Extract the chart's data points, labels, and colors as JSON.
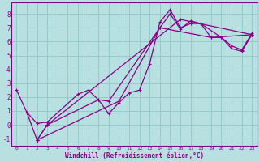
{
  "xlabel": "Windchill (Refroidissement éolien,°C)",
  "xlim": [
    -0.5,
    23.5
  ],
  "ylim": [
    -1.5,
    8.8
  ],
  "yticks": [
    -1,
    0,
    1,
    2,
    3,
    4,
    5,
    6,
    7,
    8
  ],
  "xticks": [
    0,
    1,
    2,
    3,
    4,
    5,
    6,
    7,
    8,
    9,
    10,
    11,
    12,
    13,
    14,
    15,
    16,
    17,
    18,
    19,
    20,
    21,
    22,
    23
  ],
  "bg_color": "#b8e0e0",
  "grid_color": "#90c8c8",
  "line_color": "#880088",
  "line_width": 0.9,
  "marker": "D",
  "marker_size": 2.5,
  "series": [
    {
      "x": [
        0,
        1,
        2,
        3,
        6,
        7,
        8,
        9,
        10,
        11,
        12,
        13,
        14,
        15,
        16,
        17,
        18,
        20,
        21,
        22,
        23
      ],
      "y": [
        2.5,
        0.9,
        0.1,
        0.2,
        2.2,
        2.5,
        1.8,
        0.8,
        1.6,
        2.3,
        2.5,
        4.4,
        7.4,
        8.3,
        7.0,
        7.3,
        7.3,
        6.3,
        5.5,
        5.3,
        6.5
      ]
    },
    {
      "x": [
        1,
        2,
        3,
        16,
        23
      ],
      "y": [
        0.9,
        -1.1,
        0.0,
        7.6,
        6.5
      ]
    },
    {
      "x": [
        2,
        3,
        8,
        9,
        14,
        15,
        16,
        17,
        18,
        19,
        20,
        21,
        22,
        23
      ],
      "y": [
        -1.1,
        0.0,
        1.8,
        1.7,
        7.0,
        8.0,
        6.9,
        7.5,
        7.3,
        6.3,
        6.3,
        5.7,
        5.4,
        6.6
      ]
    },
    {
      "x": [
        2,
        10,
        14,
        19,
        23
      ],
      "y": [
        -1.1,
        1.7,
        7.0,
        6.3,
        6.5
      ]
    }
  ]
}
